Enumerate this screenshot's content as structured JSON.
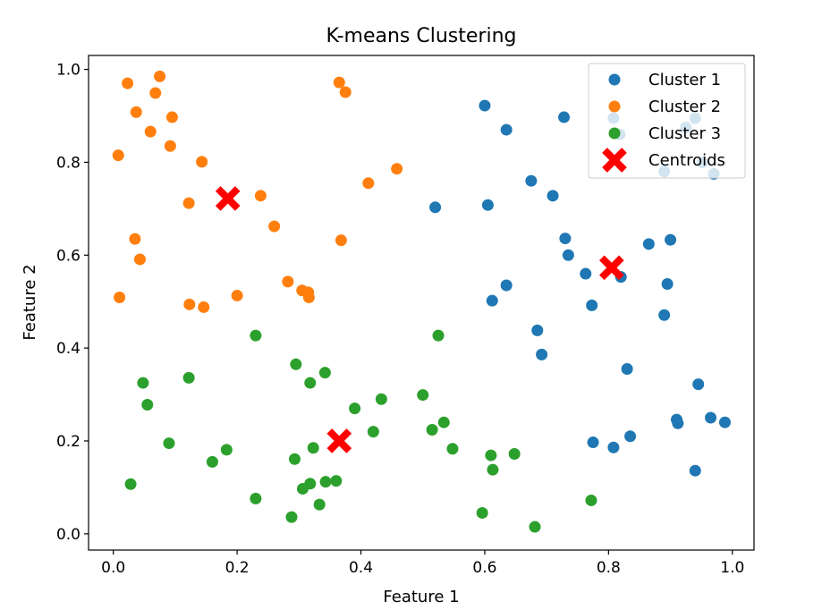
{
  "chart_data": {
    "type": "scatter",
    "title": "K-means Clustering",
    "xlabel": "Feature 1",
    "ylabel": "Feature 2",
    "xlim": [
      -0.04,
      1.035
    ],
    "ylim": [
      -0.035,
      1.03
    ],
    "xticks": [
      0.0,
      0.2,
      0.4,
      0.6,
      0.8,
      1.0
    ],
    "yticks": [
      0.0,
      0.2,
      0.4,
      0.6,
      0.8,
      1.0
    ],
    "tick_labels_x": [
      "0.0",
      "0.2",
      "0.4",
      "0.6",
      "0.8",
      "1.0"
    ],
    "tick_labels_y": [
      "0.0",
      "0.2",
      "0.4",
      "0.6",
      "0.8",
      "1.0"
    ],
    "grid": false,
    "legend_position": "top-right",
    "series": [
      {
        "name": "Cluster 1",
        "color": "#1f77b4",
        "marker": "circle",
        "points": [
          [
            0.6,
            0.922
          ],
          [
            0.635,
            0.87
          ],
          [
            0.728,
            0.897
          ],
          [
            0.808,
            0.895
          ],
          [
            0.818,
            0.86
          ],
          [
            0.94,
            0.895
          ],
          [
            0.925,
            0.875
          ],
          [
            0.89,
            0.78
          ],
          [
            0.952,
            0.8
          ],
          [
            0.97,
            0.775
          ],
          [
            0.675,
            0.76
          ],
          [
            0.71,
            0.728
          ],
          [
            0.52,
            0.703
          ],
          [
            0.605,
            0.708
          ],
          [
            0.73,
            0.636
          ],
          [
            0.735,
            0.6
          ],
          [
            0.865,
            0.624
          ],
          [
            0.9,
            0.633
          ],
          [
            0.763,
            0.56
          ],
          [
            0.82,
            0.553
          ],
          [
            0.635,
            0.535
          ],
          [
            0.612,
            0.502
          ],
          [
            0.773,
            0.492
          ],
          [
            0.895,
            0.538
          ],
          [
            0.89,
            0.471
          ],
          [
            0.685,
            0.438
          ],
          [
            0.692,
            0.386
          ],
          [
            0.83,
            0.355
          ],
          [
            0.945,
            0.322
          ],
          [
            0.91,
            0.246
          ],
          [
            0.912,
            0.238
          ],
          [
            0.965,
            0.25
          ],
          [
            0.988,
            0.24
          ],
          [
            0.775,
            0.197
          ],
          [
            0.808,
            0.186
          ],
          [
            0.835,
            0.21
          ],
          [
            0.94,
            0.136
          ]
        ]
      },
      {
        "name": "Cluster 2",
        "color": "#ff7f0e",
        "marker": "circle",
        "points": [
          [
            0.023,
            0.97
          ],
          [
            0.075,
            0.985
          ],
          [
            0.068,
            0.949
          ],
          [
            0.037,
            0.908
          ],
          [
            0.095,
            0.897
          ],
          [
            0.06,
            0.866
          ],
          [
            0.092,
            0.835
          ],
          [
            0.008,
            0.815
          ],
          [
            0.143,
            0.801
          ],
          [
            0.365,
            0.972
          ],
          [
            0.375,
            0.951
          ],
          [
            0.458,
            0.786
          ],
          [
            0.412,
            0.755
          ],
          [
            0.238,
            0.728
          ],
          [
            0.122,
            0.712
          ],
          [
            0.26,
            0.662
          ],
          [
            0.035,
            0.635
          ],
          [
            0.368,
            0.632
          ],
          [
            0.043,
            0.591
          ],
          [
            0.282,
            0.543
          ],
          [
            0.305,
            0.524
          ],
          [
            0.315,
            0.52
          ],
          [
            0.316,
            0.509
          ],
          [
            0.2,
            0.513
          ],
          [
            0.01,
            0.509
          ],
          [
            0.123,
            0.494
          ],
          [
            0.146,
            0.488
          ]
        ]
      },
      {
        "name": "Cluster 3",
        "color": "#2ca02c",
        "marker": "circle",
        "points": [
          [
            0.23,
            0.427
          ],
          [
            0.525,
            0.427
          ],
          [
            0.295,
            0.365
          ],
          [
            0.342,
            0.347
          ],
          [
            0.318,
            0.325
          ],
          [
            0.122,
            0.336
          ],
          [
            0.048,
            0.325
          ],
          [
            0.055,
            0.278
          ],
          [
            0.5,
            0.299
          ],
          [
            0.433,
            0.29
          ],
          [
            0.39,
            0.27
          ],
          [
            0.534,
            0.24
          ],
          [
            0.515,
            0.224
          ],
          [
            0.42,
            0.22
          ],
          [
            0.09,
            0.195
          ],
          [
            0.183,
            0.181
          ],
          [
            0.323,
            0.185
          ],
          [
            0.548,
            0.183
          ],
          [
            0.16,
            0.155
          ],
          [
            0.293,
            0.161
          ],
          [
            0.61,
            0.169
          ],
          [
            0.648,
            0.172
          ],
          [
            0.613,
            0.138
          ],
          [
            0.028,
            0.107
          ],
          [
            0.318,
            0.108
          ],
          [
            0.343,
            0.112
          ],
          [
            0.36,
            0.114
          ],
          [
            0.306,
            0.097
          ],
          [
            0.23,
            0.076
          ],
          [
            0.333,
            0.063
          ],
          [
            0.288,
            0.036
          ],
          [
            0.596,
            0.045
          ],
          [
            0.772,
            0.072
          ],
          [
            0.681,
            0.015
          ]
        ]
      },
      {
        "name": "Centroids",
        "color": "#ff0000",
        "marker": "x",
        "points": [
          [
            0.185,
            0.722
          ],
          [
            0.365,
            0.2
          ],
          [
            0.805,
            0.573
          ]
        ]
      }
    ]
  }
}
